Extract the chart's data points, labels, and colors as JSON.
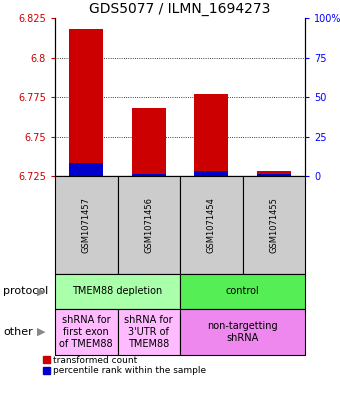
{
  "title": "GDS5077 / ILMN_1694273",
  "samples": [
    "GSM1071457",
    "GSM1071456",
    "GSM1071454",
    "GSM1071455"
  ],
  "red_values": [
    6.818,
    6.768,
    6.777,
    6.728
  ],
  "blue_values": [
    6.733,
    6.726,
    6.728,
    6.726
  ],
  "y_min": 6.725,
  "y_max": 6.825,
  "y_ticks_left": [
    6.725,
    6.75,
    6.775,
    6.8,
    6.825
  ],
  "y_ticks_right_vals": [
    0,
    25,
    50,
    75,
    100
  ],
  "y_ticks_right_labels": [
    "0",
    "25",
    "50",
    "75",
    "100%"
  ],
  "red_color": "#cc0000",
  "blue_color": "#0000cc",
  "bar_baseline": 6.725,
  "protocol_label": "protocol",
  "other_label": "other",
  "protocol_groups": [
    {
      "label": "TMEM88 depletion",
      "cols": [
        0,
        1
      ],
      "color": "#aaffaa"
    },
    {
      "label": "control",
      "cols": [
        2,
        3
      ],
      "color": "#55ee55"
    }
  ],
  "other_groups": [
    {
      "label": "shRNA for\nfirst exon\nof TMEM88",
      "cols": [
        0
      ],
      "color": "#ffbbff"
    },
    {
      "label": "shRNA for\n3'UTR of\nTMEM88",
      "cols": [
        1
      ],
      "color": "#ffbbff"
    },
    {
      "label": "non-targetting\nshRNA",
      "cols": [
        2,
        3
      ],
      "color": "#ee88ee"
    }
  ],
  "legend_red": "transformed count",
  "legend_blue": "percentile rank within the sample",
  "sample_box_color": "#cccccc",
  "title_fontsize": 10,
  "tick_fontsize": 7,
  "sample_fontsize": 6,
  "label_fontsize": 8,
  "group_fontsize": 7
}
